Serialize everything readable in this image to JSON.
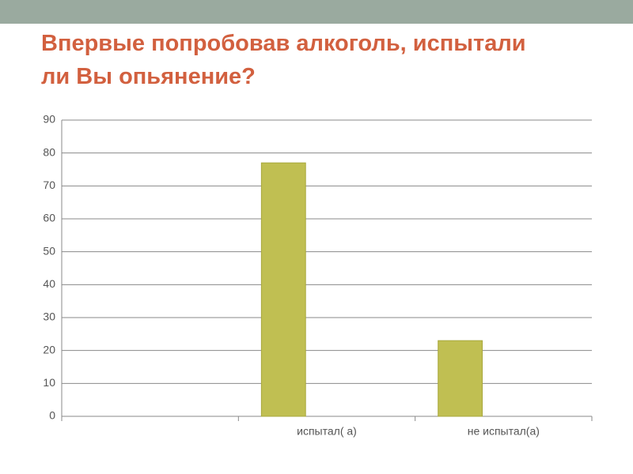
{
  "chart_data": {
    "type": "bar",
    "title": "Впервые попробовав алкоголь, испытали ли Вы опьянение?",
    "categories": [
      null,
      "испытал( а)",
      "не испытал(а)"
    ],
    "values": [
      null,
      77,
      23
    ],
    "color": "#c0bf52",
    "ylim": [
      0,
      90
    ],
    "yticks": [
      0,
      10,
      20,
      30,
      40,
      50,
      60,
      70,
      80,
      90
    ],
    "grid": true
  }
}
